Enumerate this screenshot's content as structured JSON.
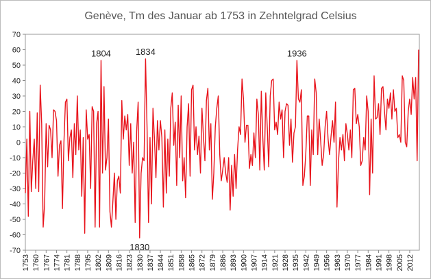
{
  "chart_data": {
    "type": "line",
    "title": "Genève, Tm des Januar ab 1753 in Zehntelgrad Celsius",
    "x": [
      1753,
      1754,
      1755,
      1756,
      1757,
      1758,
      1759,
      1760,
      1761,
      1762,
      1763,
      1764,
      1765,
      1766,
      1767,
      1768,
      1769,
      1770,
      1771,
      1772,
      1773,
      1774,
      1775,
      1776,
      1777,
      1778,
      1779,
      1780,
      1781,
      1782,
      1783,
      1784,
      1785,
      1786,
      1787,
      1788,
      1789,
      1790,
      1791,
      1792,
      1793,
      1794,
      1795,
      1796,
      1797,
      1798,
      1799,
      1800,
      1801,
      1802,
      1803,
      1804,
      1805,
      1806,
      1807,
      1808,
      1809,
      1810,
      1811,
      1812,
      1813,
      1814,
      1815,
      1816,
      1817,
      1818,
      1819,
      1820,
      1821,
      1822,
      1823,
      1824,
      1825,
      1826,
      1827,
      1828,
      1829,
      1830,
      1831,
      1832,
      1833,
      1834,
      1835,
      1836,
      1837,
      1838,
      1839,
      1840,
      1841,
      1842,
      1843,
      1844,
      1845,
      1846,
      1847,
      1848,
      1849,
      1850,
      1851,
      1852,
      1853,
      1854,
      1855,
      1856,
      1857,
      1858,
      1859,
      1860,
      1861,
      1862,
      1863,
      1864,
      1865,
      1866,
      1867,
      1868,
      1869,
      1870,
      1871,
      1872,
      1873,
      1874,
      1875,
      1876,
      1877,
      1878,
      1879,
      1880,
      1881,
      1882,
      1883,
      1884,
      1885,
      1886,
      1887,
      1888,
      1889,
      1890,
      1891,
      1892,
      1893,
      1894,
      1895,
      1896,
      1897,
      1898,
      1899,
      1900,
      1901,
      1902,
      1903,
      1904,
      1905,
      1906,
      1907,
      1908,
      1909,
      1910,
      1911,
      1912,
      1913,
      1914,
      1915,
      1916,
      1917,
      1918,
      1919,
      1920,
      1921,
      1922,
      1923,
      1924,
      1925,
      1926,
      1927,
      1928,
      1929,
      1930,
      1931,
      1932,
      1933,
      1934,
      1935,
      1936,
      1937,
      1938,
      1939,
      1940,
      1941,
      1942,
      1943,
      1944,
      1945,
      1946,
      1947,
      1948,
      1949,
      1950,
      1951,
      1952,
      1953,
      1954,
      1955,
      1956,
      1957,
      1958,
      1959,
      1960,
      1961,
      1962,
      1963,
      1964,
      1965,
      1966,
      1967,
      1968,
      1969,
      1970,
      1971,
      1972,
      1973,
      1974,
      1975,
      1976,
      1977,
      1978,
      1979,
      1980,
      1981,
      1982,
      1983,
      1984,
      1985,
      1986,
      1987,
      1988,
      1989,
      1990,
      1991,
      1992,
      1993,
      1994,
      1995,
      1996,
      1997,
      1998,
      1999,
      2000,
      2001,
      2002,
      2003,
      2004,
      2005,
      2006,
      2007,
      2008,
      2009,
      2010,
      2011,
      2012,
      2013,
      2014,
      2015,
      2016,
      2017,
      2018
    ],
    "series": [
      {
        "color": "#e8141c",
        "values": [
          -33,
          2,
          -48,
          20,
          -32,
          -12,
          2,
          -30,
          19,
          -32,
          37,
          12,
          -55,
          -40,
          12,
          -16,
          11,
          8,
          -10,
          21,
          20,
          14,
          -22,
          -2,
          1,
          -43,
          0,
          26,
          28,
          -12,
          3,
          8,
          -23,
          12,
          -8,
          30,
          -5,
          8,
          -35,
          3,
          -59,
          21,
          2,
          5,
          -30,
          23,
          20,
          -55,
          12,
          20,
          -55,
          53,
          -20,
          36,
          -18,
          -10,
          15,
          -45,
          -55,
          -38,
          -20,
          -50,
          -25,
          -22,
          -33,
          27,
          2,
          17,
          8,
          18,
          -15,
          12,
          -20,
          0,
          -52,
          7,
          26,
          -62,
          -20,
          -10,
          -12,
          54,
          10,
          -52,
          3,
          -40,
          22,
          2,
          -23,
          14,
          -5,
          14,
          3,
          -42,
          8,
          -33,
          2,
          -22,
          22,
          32,
          -2,
          13,
          -28,
          24,
          -10,
          30,
          -25,
          -10,
          -36,
          10,
          25,
          -22,
          34,
          37,
          -5,
          10,
          -8,
          4,
          -20,
          22,
          4,
          -12,
          27,
          35,
          -5,
          12,
          -37,
          -20,
          10,
          22,
          30,
          -8,
          -25,
          -18,
          -10,
          -20,
          -26,
          -10,
          -44,
          -15,
          -35,
          -8,
          -30,
          -5,
          10,
          5,
          41,
          28,
          0,
          11,
          11,
          -17,
          -8,
          -15,
          6,
          -10,
          28,
          18,
          -18,
          33,
          3,
          -18,
          32,
          10,
          -16,
          30,
          40,
          41,
          8,
          13,
          5,
          26,
          15,
          21,
          -10,
          20,
          25,
          24,
          -2,
          15,
          -13,
          6,
          10,
          53,
          28,
          26,
          34,
          -28,
          -22,
          -7,
          17,
          17,
          -28,
          8,
          -8,
          41,
          32,
          -8,
          15,
          1,
          -15,
          -8,
          10,
          20,
          2,
          -8,
          4,
          14,
          0,
          26,
          -42,
          -13,
          3,
          -5,
          5,
          -12,
          12,
          5,
          -5,
          8,
          -10,
          34,
          35,
          12,
          18,
          10,
          -15,
          -12,
          3,
          -5,
          30,
          20,
          -34,
          15,
          -20,
          43,
          15,
          16,
          25,
          5,
          35,
          36,
          20,
          8,
          28,
          22,
          32,
          15,
          34,
          20,
          22,
          3,
          5,
          0,
          43,
          40,
          0,
          -3,
          20,
          28,
          18,
          42,
          28,
          42,
          -12,
          60
        ]
      }
    ],
    "annotations": [
      "1804",
      "1834",
      "1936",
      "1830"
    ],
    "xlim": [
      1753,
      2018.5
    ],
    "xticks": [
      1753,
      1760,
      1767,
      1774,
      1781,
      1788,
      1795,
      1802,
      1809,
      1816,
      1823,
      1830,
      1837,
      1844,
      1851,
      1858,
      1865,
      1872,
      1879,
      1886,
      1893,
      1900,
      1907,
      1914,
      1921,
      1928,
      1935,
      1942,
      1949,
      1956,
      1963,
      1970,
      1977,
      1984,
      1991,
      1998,
      2005,
      2012
    ],
    "ylim": [
      -70,
      70
    ],
    "yticks": [
      -70,
      -60,
      -50,
      -40,
      -30,
      -20,
      -10,
      0,
      10,
      20,
      30,
      40,
      50,
      60,
      70
    ],
    "grid": false
  }
}
